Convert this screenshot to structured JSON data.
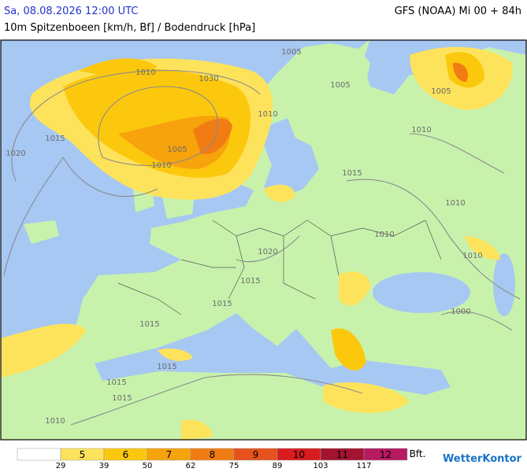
{
  "header": {
    "datetime": "Sa, 08.08.2026 12:00 UTC",
    "model": "GFS (NOAA) Mi 00 + 84h",
    "subtitle": "10m Spitzenboeen [km/h, Bf] / Bodendruck [hPa]"
  },
  "map": {
    "isobar_labels": [
      "1005",
      "1010",
      "1030",
      "1005",
      "1005",
      "1010",
      "1015",
      "1020",
      "1005",
      "1010",
      "1015",
      "1010",
      "1010",
      "1010",
      "1010",
      "1020",
      "1015",
      "1015",
      "1015",
      "1015",
      "1015",
      "1015",
      "1010",
      "1000"
    ]
  },
  "legend": {
    "unit": "Bft.",
    "levels": [
      {
        "bft": "",
        "color": "#ffffff"
      },
      {
        "bft": "5",
        "color": "#fde35c"
      },
      {
        "bft": "6",
        "color": "#fcc80e"
      },
      {
        "bft": "7",
        "color": "#f7a30b"
      },
      {
        "bft": "8",
        "color": "#f07c13"
      },
      {
        "bft": "9",
        "color": "#e6521d"
      },
      {
        "bft": "10",
        "color": "#d81c1f"
      },
      {
        "bft": "11",
        "color": "#a4132f"
      },
      {
        "bft": "12",
        "color": "#b61a60"
      }
    ],
    "kmh": [
      "29",
      "39",
      "50",
      "62",
      "75",
      "89",
      "103",
      "117"
    ]
  },
  "logo": "WetterKontor"
}
